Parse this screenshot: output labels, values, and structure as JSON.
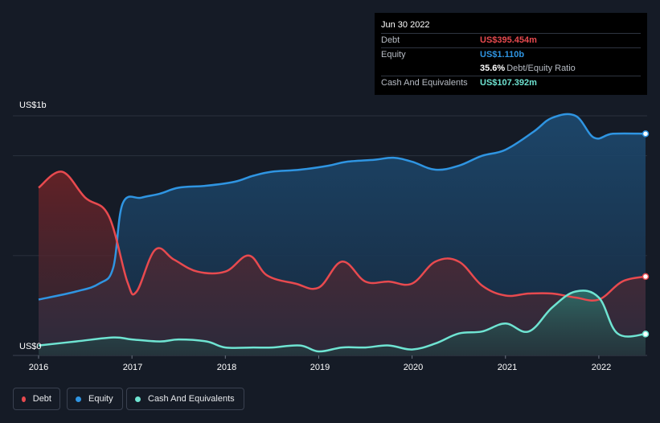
{
  "tooltip": {
    "date": "Jun 30 2022",
    "rows": [
      {
        "key": "Debt",
        "value": "US$395.454m",
        "color": "#e84a4f"
      },
      {
        "key": "Equity",
        "value": "US$1.110b",
        "color": "#2f95e2"
      },
      {
        "key": "",
        "value": "35.6%",
        "sub": "Debt/Equity Ratio",
        "color": "#ffffff"
      },
      {
        "key": "Cash And Equivalents",
        "value": "US$107.392m",
        "color": "#6fe4d2"
      }
    ]
  },
  "legend": [
    {
      "label": "Debt",
      "color": "#e84a4f"
    },
    {
      "label": "Equity",
      "color": "#2f95e2"
    },
    {
      "label": "Cash And Equivalents",
      "color": "#6fe4d2"
    }
  ],
  "chart_data": {
    "type": "area",
    "y_tick_labels": {
      "top": "US$1b",
      "bottom": "US$0"
    },
    "ylim": [
      0,
      1.2
    ],
    "xlim": [
      2016,
      2022.5
    ],
    "x_tick_labels": [
      "2016",
      "2017",
      "2018",
      "2019",
      "2020",
      "2021",
      "2022"
    ],
    "x_tick_values": [
      2016,
      2017,
      2018,
      2019,
      2020,
      2021,
      2022
    ],
    "series": [
      {
        "name": "Equity",
        "color": "#2f95e2",
        "points": [
          [
            2016.0,
            0.28
          ],
          [
            2016.4,
            0.32
          ],
          [
            2016.65,
            0.36
          ],
          [
            2016.8,
            0.44
          ],
          [
            2016.9,
            0.76
          ],
          [
            2017.1,
            0.79
          ],
          [
            2017.3,
            0.81
          ],
          [
            2017.5,
            0.84
          ],
          [
            2017.8,
            0.85
          ],
          [
            2018.1,
            0.87
          ],
          [
            2018.3,
            0.9
          ],
          [
            2018.5,
            0.92
          ],
          [
            2018.8,
            0.93
          ],
          [
            2019.1,
            0.95
          ],
          [
            2019.3,
            0.97
          ],
          [
            2019.6,
            0.98
          ],
          [
            2019.8,
            0.99
          ],
          [
            2020.0,
            0.97
          ],
          [
            2020.25,
            0.93
          ],
          [
            2020.5,
            0.95
          ],
          [
            2020.75,
            1.0
          ],
          [
            2021.0,
            1.03
          ],
          [
            2021.3,
            1.12
          ],
          [
            2021.5,
            1.19
          ],
          [
            2021.75,
            1.2
          ],
          [
            2021.95,
            1.09
          ],
          [
            2022.15,
            1.11
          ],
          [
            2022.5,
            1.11
          ]
        ]
      },
      {
        "name": "Debt",
        "color": "#e84a4f",
        "points": [
          [
            2016.0,
            0.84
          ],
          [
            2016.25,
            0.92
          ],
          [
            2016.5,
            0.79
          ],
          [
            2016.75,
            0.7
          ],
          [
            2016.95,
            0.37
          ],
          [
            2017.05,
            0.32
          ],
          [
            2017.25,
            0.53
          ],
          [
            2017.45,
            0.48
          ],
          [
            2017.7,
            0.42
          ],
          [
            2018.0,
            0.42
          ],
          [
            2018.25,
            0.5
          ],
          [
            2018.45,
            0.4
          ],
          [
            2018.75,
            0.36
          ],
          [
            2019.0,
            0.34
          ],
          [
            2019.25,
            0.47
          ],
          [
            2019.5,
            0.37
          ],
          [
            2019.75,
            0.37
          ],
          [
            2020.0,
            0.36
          ],
          [
            2020.25,
            0.47
          ],
          [
            2020.5,
            0.47
          ],
          [
            2020.75,
            0.35
          ],
          [
            2021.0,
            0.3
          ],
          [
            2021.25,
            0.31
          ],
          [
            2021.5,
            0.31
          ],
          [
            2021.75,
            0.29
          ],
          [
            2022.0,
            0.28
          ],
          [
            2022.25,
            0.37
          ],
          [
            2022.5,
            0.395
          ]
        ]
      },
      {
        "name": "Cash And Equivalents",
        "color": "#6fe4d2",
        "points": [
          [
            2016.0,
            0.05
          ],
          [
            2016.4,
            0.07
          ],
          [
            2016.8,
            0.09
          ],
          [
            2017.0,
            0.08
          ],
          [
            2017.3,
            0.07
          ],
          [
            2017.5,
            0.08
          ],
          [
            2017.8,
            0.07
          ],
          [
            2018.0,
            0.04
          ],
          [
            2018.3,
            0.04
          ],
          [
            2018.5,
            0.04
          ],
          [
            2018.8,
            0.05
          ],
          [
            2019.0,
            0.02
          ],
          [
            2019.25,
            0.04
          ],
          [
            2019.5,
            0.04
          ],
          [
            2019.75,
            0.05
          ],
          [
            2020.0,
            0.03
          ],
          [
            2020.25,
            0.06
          ],
          [
            2020.5,
            0.11
          ],
          [
            2020.75,
            0.12
          ],
          [
            2021.0,
            0.16
          ],
          [
            2021.25,
            0.12
          ],
          [
            2021.5,
            0.24
          ],
          [
            2021.75,
            0.32
          ],
          [
            2022.0,
            0.29
          ],
          [
            2022.2,
            0.11
          ],
          [
            2022.5,
            0.107
          ]
        ]
      }
    ]
  }
}
